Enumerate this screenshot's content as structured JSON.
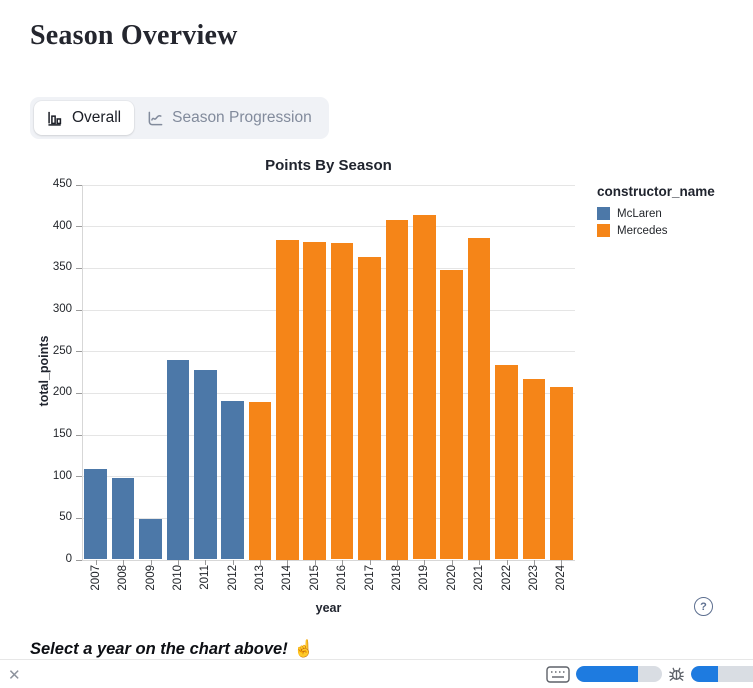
{
  "page": {
    "title": "Season Overview"
  },
  "tabs": [
    {
      "label": "Overall",
      "icon": "bar-chart-icon",
      "active": true
    },
    {
      "label": "Season Progression",
      "icon": "line-chart-icon",
      "active": false
    }
  ],
  "chart_data": {
    "type": "bar",
    "title": "Points By Season",
    "xlabel": "year",
    "ylabel": "total_points",
    "ylim": [
      0,
      450
    ],
    "ytick_step": 50,
    "grid": true,
    "legend": {
      "title": "constructor_name",
      "position": "right"
    },
    "series": [
      {
        "name": "McLaren",
        "color": "#4c78a8"
      },
      {
        "name": "Mercedes",
        "color": "#f58518"
      }
    ],
    "categories": [
      "2007",
      "2008",
      "2009",
      "2010",
      "2011",
      "2012",
      "2013",
      "2014",
      "2015",
      "2016",
      "2017",
      "2018",
      "2019",
      "2020",
      "2021",
      "2022",
      "2023",
      "2024"
    ],
    "points": [
      {
        "year": "2007",
        "constructor": "McLaren",
        "value": 109
      },
      {
        "year": "2008",
        "constructor": "McLaren",
        "value": 98
      },
      {
        "year": "2009",
        "constructor": "McLaren",
        "value": 49
      },
      {
        "year": "2010",
        "constructor": "McLaren",
        "value": 240
      },
      {
        "year": "2011",
        "constructor": "McLaren",
        "value": 227
      },
      {
        "year": "2012",
        "constructor": "McLaren",
        "value": 190
      },
      {
        "year": "2013",
        "constructor": "Mercedes",
        "value": 189
      },
      {
        "year": "2014",
        "constructor": "Mercedes",
        "value": 384
      },
      {
        "year": "2015",
        "constructor": "Mercedes",
        "value": 381
      },
      {
        "year": "2016",
        "constructor": "Mercedes",
        "value": 380
      },
      {
        "year": "2017",
        "constructor": "Mercedes",
        "value": 363
      },
      {
        "year": "2018",
        "constructor": "Mercedes",
        "value": 408
      },
      {
        "year": "2019",
        "constructor": "Mercedes",
        "value": 413
      },
      {
        "year": "2020",
        "constructor": "Mercedes",
        "value": 347
      },
      {
        "year": "2021",
        "constructor": "Mercedes",
        "value": 385.5
      },
      {
        "year": "2022",
        "constructor": "Mercedes",
        "value": 233
      },
      {
        "year": "2023",
        "constructor": "Mercedes",
        "value": 217
      },
      {
        "year": "2024",
        "constructor": "Mercedes",
        "value": 207
      }
    ]
  },
  "help": {
    "label": "?"
  },
  "footer": {
    "message": "Select a year on the chart above!",
    "emoji": "☝"
  },
  "statusbar": {
    "accent_blue": "#1e7be0",
    "progress_a": 0.72,
    "progress_b": 0.38,
    "close_label": "✕"
  }
}
